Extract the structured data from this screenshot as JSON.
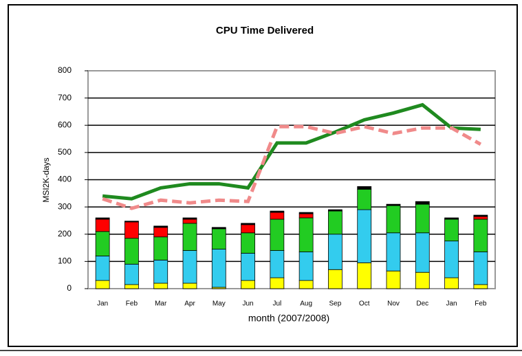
{
  "chart_data": {
    "type": "bar",
    "title": "CPU Time Delivered",
    "ylabel": "MSI2K-days",
    "xlabel": "month (2007/2008)",
    "categories": [
      "Jan",
      "Feb",
      "Mar",
      "Apr",
      "May",
      "Jun",
      "Jul",
      "Aug",
      "Sep",
      "Oct",
      "Nov",
      "Dec",
      "Jan",
      "Feb"
    ],
    "series": [
      {
        "color": "#ffff00",
        "values": [
          30,
          15,
          20,
          20,
          5,
          30,
          40,
          30,
          70,
          95,
          65,
          60,
          40,
          15
        ]
      },
      {
        "color": "#33ccee",
        "values": [
          90,
          75,
          85,
          120,
          140,
          100,
          100,
          105,
          130,
          195,
          140,
          145,
          135,
          120
        ]
      },
      {
        "color": "#22cc22",
        "values": [
          90,
          95,
          85,
          100,
          75,
          75,
          115,
          125,
          85,
          75,
          100,
          105,
          80,
          120
        ]
      },
      {
        "color": "#ff0000",
        "values": [
          45,
          60,
          35,
          15,
          0,
          30,
          25,
          15,
          0,
          0,
          0,
          0,
          0,
          10
        ]
      },
      {
        "color": "#000000",
        "values": [
          5,
          3,
          5,
          5,
          5,
          5,
          5,
          5,
          5,
          10,
          5,
          10,
          5,
          5
        ]
      }
    ],
    "lines": [
      {
        "type": "line",
        "color": "#1f8a1f",
        "dashed": false,
        "values": [
          340,
          330,
          370,
          385,
          385,
          370,
          535,
          535,
          575,
          620,
          645,
          675,
          590,
          585
        ]
      },
      {
        "type": "line",
        "color": "#f08a8a",
        "dashed": true,
        "values": [
          330,
          295,
          325,
          315,
          325,
          320,
          595,
          595,
          570,
          595,
          570,
          590,
          590,
          530
        ]
      }
    ],
    "ylim": [
      0,
      800
    ],
    "yticks": [
      0,
      100,
      200,
      300,
      400,
      500,
      600,
      700,
      800
    ],
    "grid": true
  }
}
